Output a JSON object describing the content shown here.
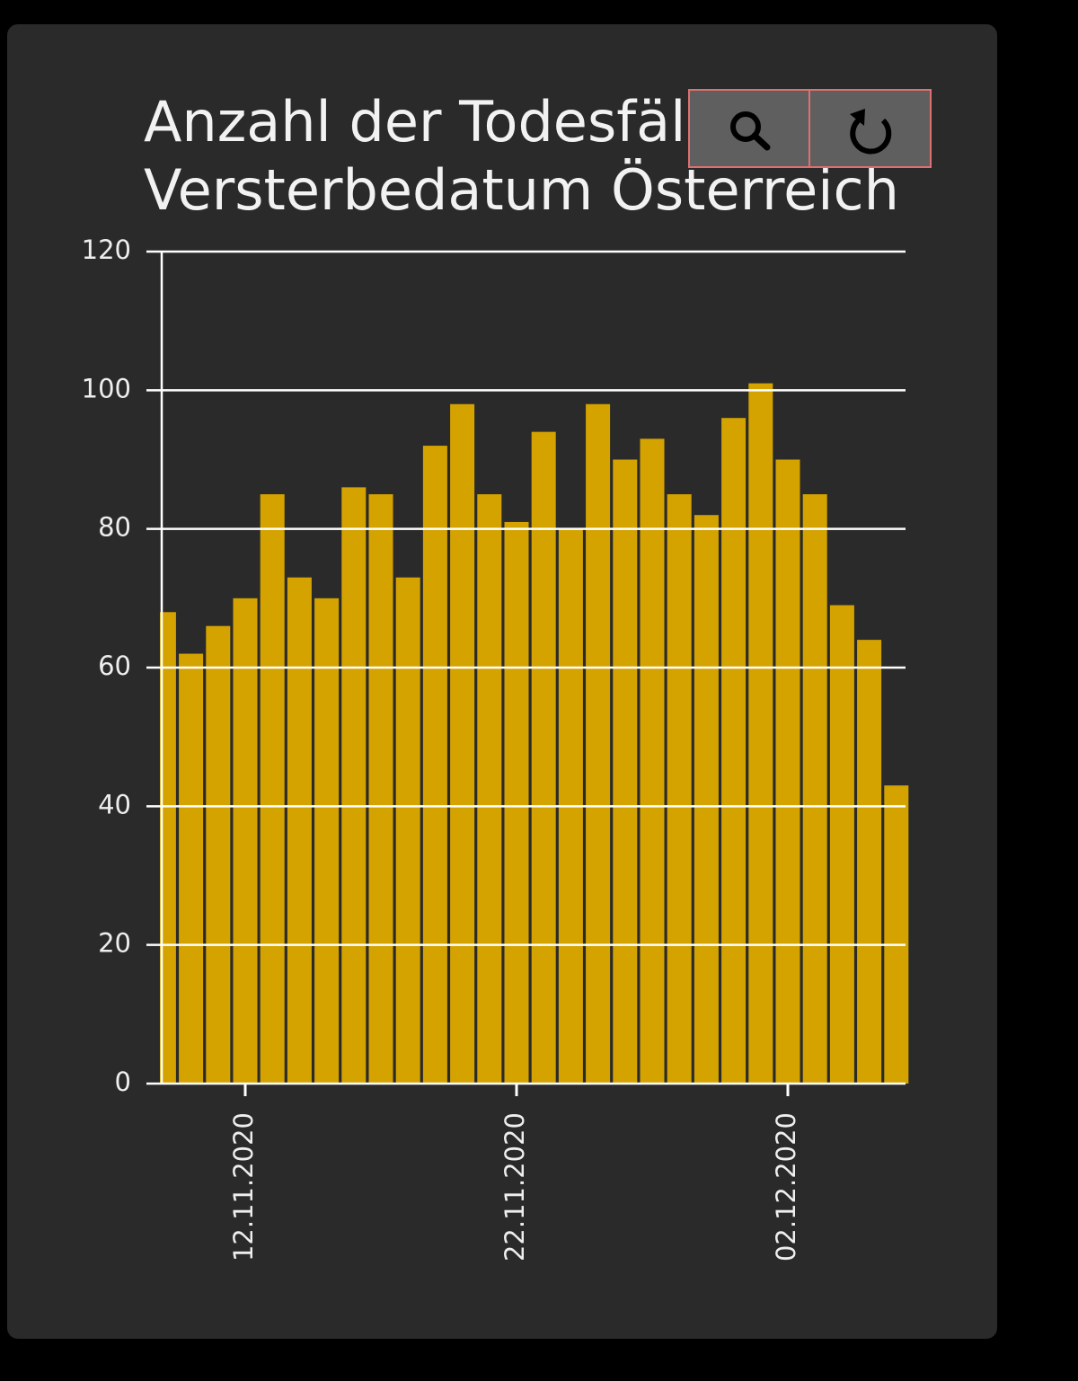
{
  "chart_data": {
    "type": "bar",
    "title_lines": [
      "Anzahl der Todesfälle",
      "Versterbedatum Österreich"
    ],
    "categories": [
      null,
      null,
      null,
      "12.11.2020",
      null,
      null,
      null,
      null,
      null,
      null,
      null,
      null,
      null,
      "22.11.2020",
      null,
      null,
      null,
      null,
      null,
      null,
      null,
      null,
      null,
      "02.12.2020",
      null,
      null,
      null,
      null
    ],
    "values": [
      68,
      62,
      66,
      70,
      85,
      73,
      70,
      86,
      85,
      73,
      92,
      98,
      85,
      81,
      94,
      80,
      98,
      90,
      93,
      85,
      82,
      96,
      101,
      90,
      85,
      69,
      64,
      43
    ],
    "color": "#d4a300",
    "ylim": [
      0,
      120
    ],
    "yticks": [
      0,
      20,
      40,
      60,
      80,
      100,
      120
    ],
    "grid": true
  }
}
